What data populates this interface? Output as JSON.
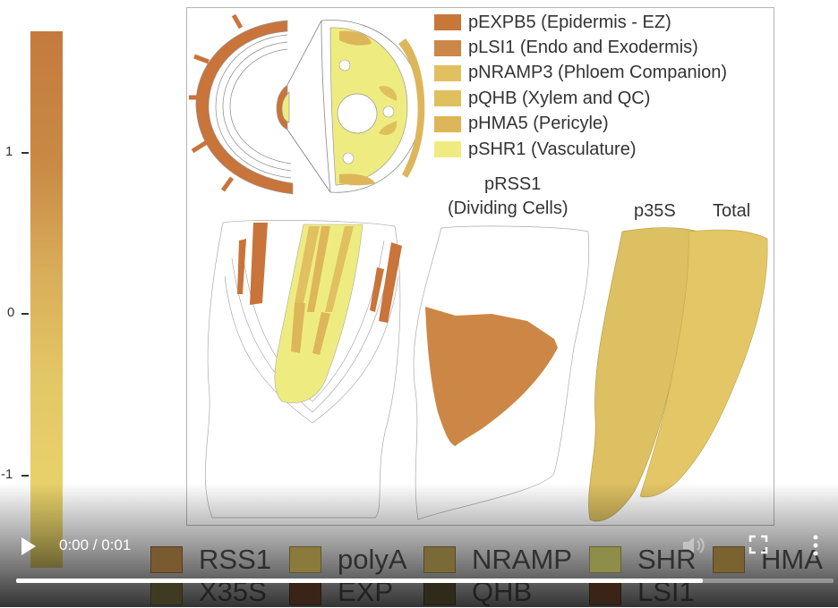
{
  "colorbar": {
    "ticks": [
      {
        "label": "1",
        "value": 1
      },
      {
        "label": "0",
        "value": 0
      },
      {
        "label": "-1",
        "value": -1
      }
    ],
    "colors": [
      "#c47a3e",
      "#d9ad5a",
      "#ecd96c"
    ]
  },
  "legend": [
    {
      "label": "pEXPB5 (Epidermis - EZ)",
      "color": "#c8773a"
    },
    {
      "label": "pLSI1 (Endo and Exodermis)",
      "color": "#cc8746"
    },
    {
      "label": "pNRAMP3 (Phloem Companion)",
      "color": "#e0c060"
    },
    {
      "label": "pQHB (Xylem and QC)",
      "color": "#dfc05e"
    },
    {
      "label": "pHMA5 (Pericyle)",
      "color": "#ddb65a"
    },
    {
      "label": "pSHR1 (Vasculature)",
      "color": "#eeec80"
    }
  ],
  "captions": {
    "rss1_line1": "pRSS1",
    "rss1_line2": "(Dividing Cells)",
    "p35s": "p35S",
    "total": "Total"
  },
  "overlay_chips": {
    "row1": [
      {
        "label": "RSS1",
        "color": "#7a5a30"
      },
      {
        "label": "polyA",
        "color": "#8a7a3c"
      },
      {
        "label": "NRAMP",
        "color": "#7a6a38"
      },
      {
        "label": "SHR",
        "color": "#8e8e4a"
      },
      {
        "label": "HMA",
        "color": "#7a6330"
      }
    ],
    "row2": [
      {
        "label": "X35S",
        "color": "#3f3a22"
      },
      {
        "label": "EXP",
        "color": "#3a2418"
      },
      {
        "label": "QHB",
        "color": "#302a1a"
      },
      {
        "label": "LSI1",
        "color": "#3a2418"
      }
    ]
  },
  "player": {
    "time": "0:00 / 0:01",
    "progress": 0.84
  }
}
